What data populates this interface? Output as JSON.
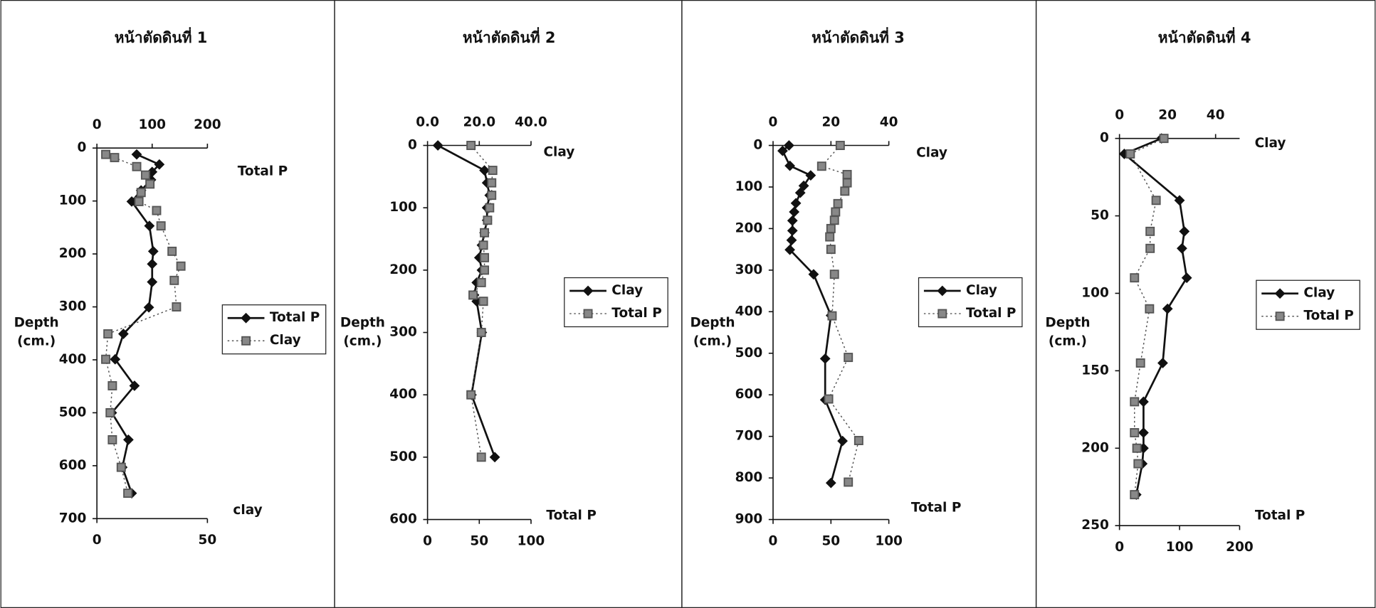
{
  "chart_data": [
    {
      "type": "line",
      "title": "หน้าตัดดินที่ 1",
      "ylabel": [
        "Depth",
        "(cm.)"
      ],
      "top_axis_label": "Total P",
      "bottom_axis_label": "clay",
      "xlim": [
        0,
        200
      ],
      "xticks": [
        0,
        100,
        200
      ],
      "x2lim": [
        0,
        50
      ],
      "x2ticks": [
        0,
        50
      ],
      "ylim": [
        0,
        700
      ],
      "yticks": [
        0,
        100,
        200,
        300,
        400,
        500,
        600,
        700
      ],
      "y_inverted": true,
      "legend": "right",
      "series": [
        {
          "name": "Total P",
          "color": "#111111",
          "style": "solid",
          "marker": "diamond",
          "axis": "top",
          "depth": [
            12,
            31,
            45,
            60,
            80,
            101,
            147,
            195,
            219,
            253,
            301,
            351,
            399,
            449,
            500,
            551,
            603,
            652
          ],
          "values": [
            72,
            113,
            100,
            98,
            80,
            63,
            95,
            102,
            100,
            100,
            94,
            48,
            33,
            68,
            27,
            57,
            46,
            63
          ]
        },
        {
          "name": "Clay",
          "color": "#555555",
          "style": "dotted",
          "marker": "square",
          "axis": "bottom",
          "depth": [
            12,
            18,
            35,
            51,
            68,
            84,
            101,
            118,
            147,
            195,
            223,
            250,
            300,
            351,
            399,
            449,
            500,
            551,
            603,
            652
          ],
          "values": [
            4,
            8,
            18,
            22,
            24,
            20,
            19,
            27,
            29,
            34,
            38,
            35,
            36,
            5,
            4,
            7,
            6,
            7,
            11,
            14
          ]
        }
      ]
    },
    {
      "type": "line",
      "title": "หน้าตัดดินที่ 2",
      "ylabel": [
        "Depth",
        "(cm.)"
      ],
      "top_axis_label": "Clay",
      "bottom_axis_label": "Total P",
      "xlim": [
        0,
        40
      ],
      "xticks": [
        {
          "value": 0,
          "label": "0.0"
        },
        {
          "value": 20,
          "label": "20.0"
        },
        {
          "value": 40,
          "label": "40.0"
        }
      ],
      "x2lim": [
        0,
        100
      ],
      "x2ticks": [
        0,
        50,
        100
      ],
      "ylim": [
        0,
        600
      ],
      "yticks": [
        0,
        100,
        200,
        300,
        400,
        500,
        600
      ],
      "y_inverted": true,
      "legend": "right",
      "series": [
        {
          "name": "Clay",
          "color": "#111111",
          "style": "solid",
          "marker": "diamond",
          "axis": "top",
          "depth": [
            0,
            40,
            60,
            80,
            100,
            120,
            140,
            160,
            180,
            200,
            220,
            240,
            250,
            300,
            400,
            500
          ],
          "values": [
            4,
            22,
            23,
            24,
            23,
            23,
            22,
            21,
            20,
            21,
            19,
            18,
            19,
            21,
            17,
            26
          ]
        },
        {
          "name": "Total P",
          "color": "#555555",
          "style": "dotted",
          "marker": "square",
          "axis": "bottom",
          "depth": [
            0,
            40,
            60,
            80,
            100,
            120,
            140,
            160,
            180,
            200,
            220,
            240,
            250,
            300,
            400,
            500
          ],
          "values": [
            42,
            63,
            62,
            62,
            60,
            58,
            55,
            54,
            55,
            55,
            52,
            44,
            54,
            52,
            42,
            52
          ]
        }
      ]
    },
    {
      "type": "line",
      "title": "หน้าตัดดินที่ 3",
      "ylabel": [
        "Depth",
        "(cm.)"
      ],
      "top_axis_label": "Clay",
      "bottom_axis_label": "Total P",
      "xlim": [
        0,
        40
      ],
      "xticks": [
        0,
        20,
        40
      ],
      "x2lim": [
        0,
        100
      ],
      "x2ticks": [
        0,
        50,
        100
      ],
      "ylim": [
        0,
        900
      ],
      "yticks": [
        0,
        100,
        200,
        300,
        400,
        500,
        600,
        700,
        800,
        900
      ],
      "y_inverted": true,
      "legend": "right",
      "series": [
        {
          "name": "Clay",
          "color": "#111111",
          "style": "solid",
          "marker": "diamond",
          "axis": "top",
          "depth": [
            0,
            13,
            49,
            72,
            97,
            114,
            139,
            160,
            181,
            205,
            228,
            251,
            310,
            409,
            513,
            612,
            711,
            812
          ],
          "values": [
            5.5,
            3.3,
            5.8,
            13,
            10.6,
            9.4,
            7.9,
            7.3,
            6.7,
            6.7,
            6.4,
            5.8,
            14,
            20,
            18,
            18,
            24,
            20
          ]
        },
        {
          "name": "Total P",
          "color": "#555555",
          "style": "dotted",
          "marker": "square",
          "axis": "bottom",
          "depth": [
            0,
            50,
            70,
            90,
            110,
            140,
            160,
            180,
            200,
            220,
            250,
            310,
            410,
            510,
            610,
            710,
            810
          ],
          "values": [
            58,
            42,
            64,
            64,
            62,
            56,
            54,
            53,
            50,
            49,
            50,
            53,
            51,
            65,
            48,
            74,
            65
          ]
        }
      ]
    },
    {
      "type": "line",
      "title": "หน้าตัดดินที่ 4",
      "ylabel": [
        "Depth",
        "(cm.)"
      ],
      "top_axis_label": "Clay",
      "bottom_axis_label": "Total P",
      "xlim": [
        0,
        50
      ],
      "xticks": [
        0,
        20,
        40
      ],
      "x2lim": [
        0,
        200
      ],
      "x2ticks": [
        0,
        100,
        200
      ],
      "ylim": [
        0,
        250
      ],
      "yticks": [
        0,
        50,
        100,
        150,
        200,
        250
      ],
      "y_inverted": true,
      "legend": "right",
      "series": [
        {
          "name": "Clay",
          "color": "#111111",
          "style": "solid",
          "marker": "diamond",
          "axis": "top",
          "depth": [
            0,
            10,
            40,
            60,
            71,
            90,
            110,
            145,
            170,
            190,
            200,
            210,
            230
          ],
          "values": [
            17.5,
            2,
            25,
            27,
            26,
            28,
            20,
            18,
            10,
            10,
            10,
            9.5,
            7
          ]
        },
        {
          "name": "Total P",
          "color": "#555555",
          "style": "dotted",
          "marker": "square",
          "axis": "bottom",
          "depth": [
            0,
            10,
            40,
            60,
            71,
            90,
            110,
            145,
            170,
            190,
            200,
            210,
            230
          ],
          "values": [
            74,
            18,
            61,
            51,
            51,
            25,
            50,
            35,
            25,
            25,
            29,
            31,
            25
          ]
        }
      ]
    }
  ]
}
